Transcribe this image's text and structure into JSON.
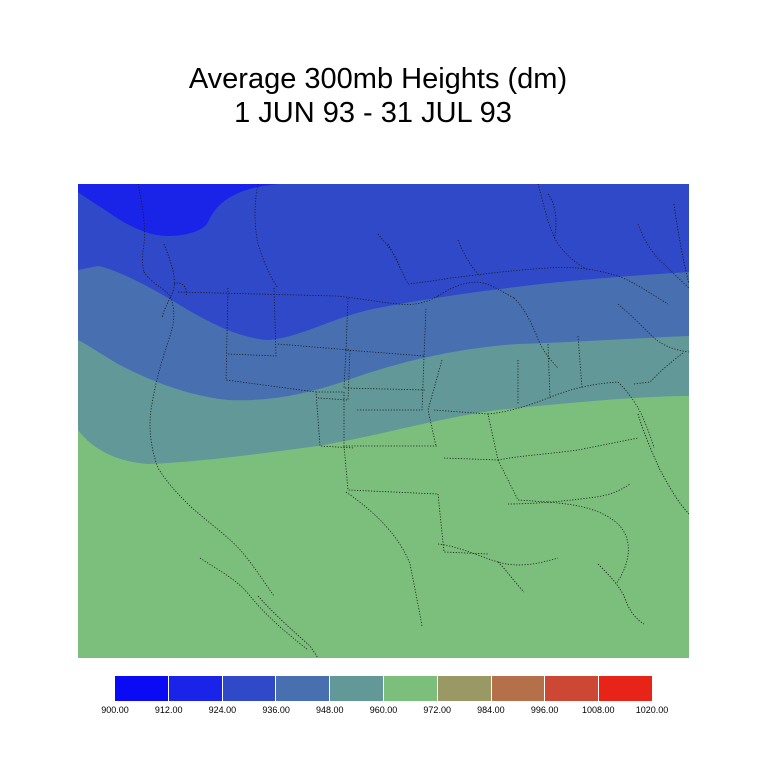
{
  "title": {
    "line1": "Average 300mb Heights (dm)",
    "line2": "1 JUN 93 - 31 JUL 93"
  },
  "map": {
    "region": "North America (contiguous United States, southern Canada, northern Mexico)",
    "variable": "300mb geopotential height",
    "units": "dm",
    "contour_bands": [
      {
        "range": [
          912,
          924
        ],
        "color": "#1a23e8"
      },
      {
        "range": [
          924,
          936
        ],
        "color": "#3049c8"
      },
      {
        "range": [
          936,
          948
        ],
        "color": "#4870b0"
      },
      {
        "range": [
          948,
          960
        ],
        "color": "#629898"
      },
      {
        "range": [
          960,
          972
        ],
        "color": "#7cbf7c"
      }
    ]
  },
  "legend": {
    "colors": [
      "#0a0af5",
      "#1a23e8",
      "#3049c8",
      "#4870b0",
      "#629898",
      "#7cbf7c",
      "#9a9864",
      "#b47048",
      "#cc4834",
      "#e82418"
    ],
    "labels": [
      "900.00",
      "912.00",
      "924.00",
      "936.00",
      "948.00",
      "960.00",
      "972.00",
      "984.00",
      "996.00",
      "1008.00",
      "1020.00"
    ]
  }
}
